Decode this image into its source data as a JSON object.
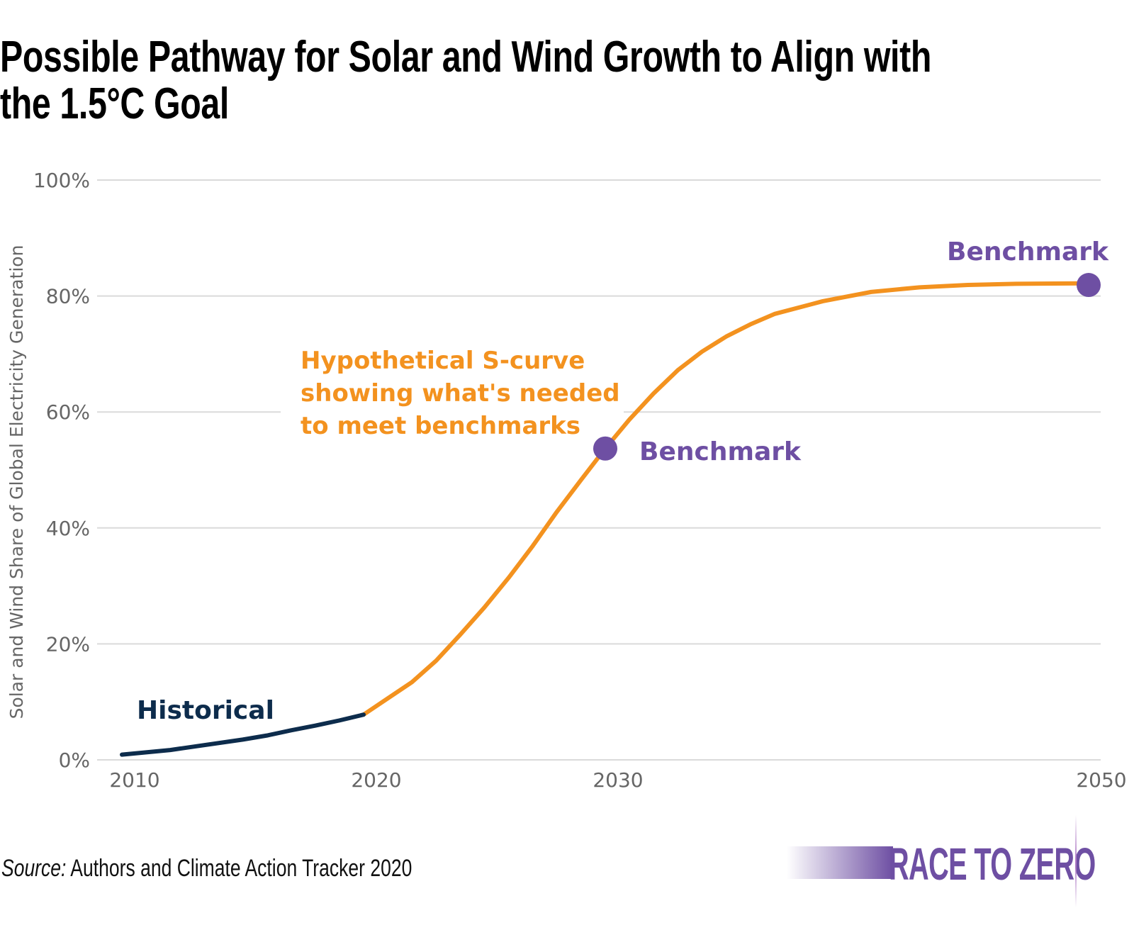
{
  "title": [
    "Possible Pathway for Solar and Wind Growth to Align with",
    "the 1.5°C Goal"
  ],
  "source": {
    "label": "Source:",
    "text": " Authors and Climate Action Tracker 2020"
  },
  "logo": {
    "text": "RACE TO ZERO"
  },
  "colors": {
    "historical": "#0D2C4C",
    "pathway": "#F3921F",
    "benchmark": "#6E4FA3",
    "grid": "#DADADA",
    "axis_text": "#666666"
  },
  "chart_data": {
    "type": "line",
    "title": "Possible Pathway for Solar and Wind Growth to Align with the 1.5°C Goal",
    "xlabel": "",
    "ylabel": "Solar and Wind Share of Global Electricity Generation",
    "xlim": [
      2010,
      2050
    ],
    "ylim": [
      0,
      100
    ],
    "grid": true,
    "x_ticks": [
      "2010",
      "2020",
      "2030",
      "2050"
    ],
    "x_tick_values": [
      2010,
      2020,
      2030,
      2050
    ],
    "y_ticks": [
      "0%",
      "20%",
      "40%",
      "60%",
      "80%",
      "100%"
    ],
    "y_tick_values": [
      0,
      20,
      40,
      60,
      80,
      100
    ],
    "series": [
      {
        "name": "Historical",
        "x": [
          2010,
          2012,
          2013,
          2015,
          2016,
          2017,
          2018,
          2019,
          2020
        ],
        "y": [
          0.9,
          1.7,
          2.3,
          3.5,
          4.2,
          5.1,
          5.9,
          6.8,
          7.8
        ]
      },
      {
        "name": "Hypothetical S-curve showing what's needed to meet benchmarks",
        "x": [
          2020,
          2021,
          2022,
          2023,
          2024,
          2025,
          2026,
          2027,
          2028,
          2029,
          2030,
          2031,
          2032,
          2033,
          2034,
          2035,
          2036,
          2037,
          2039,
          2041,
          2043,
          2045,
          2047,
          2050
        ],
        "y": [
          7.8,
          10.6,
          13.4,
          17.1,
          21.6,
          26.3,
          31.4,
          36.9,
          42.8,
          48.3,
          53.7,
          58.7,
          63.2,
          67.2,
          70.4,
          73.0,
          75.1,
          76.9,
          79.1,
          80.7,
          81.5,
          81.9,
          82.1,
          82.2
        ]
      }
    ],
    "benchmarks": [
      {
        "label": "Benchmark",
        "x": 2030,
        "y": 53.7
      },
      {
        "label": "Benchmark",
        "x": 2050,
        "y": 81.9
      }
    ],
    "annotations": {
      "historical": "Historical",
      "scurve": [
        "Hypothetical S-curve",
        "showing what's needed",
        "to meet benchmarks"
      ]
    }
  }
}
